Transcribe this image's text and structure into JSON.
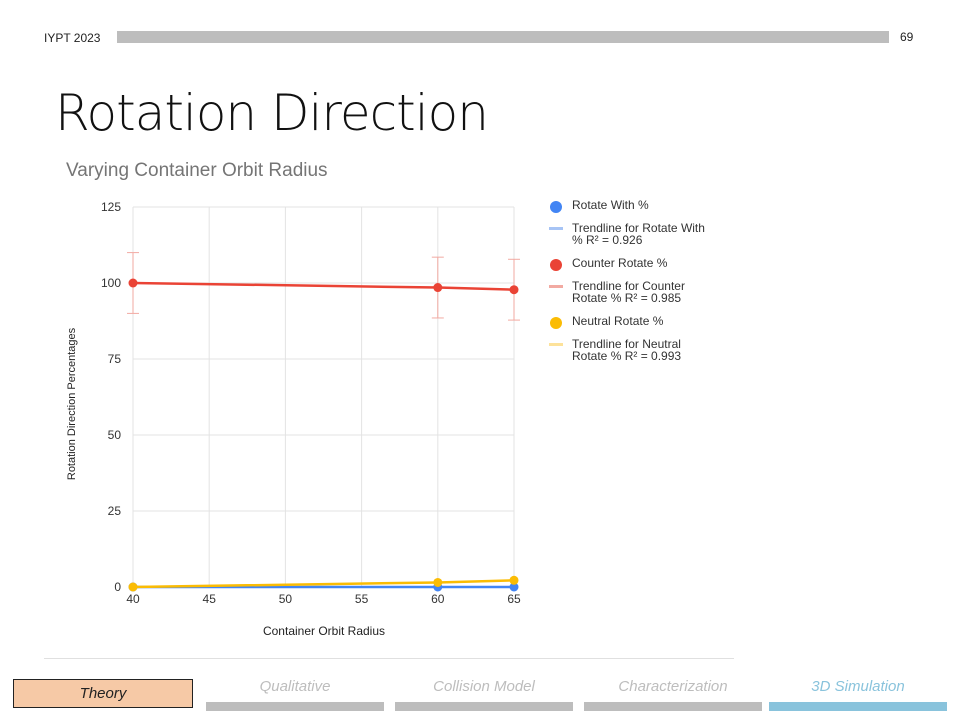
{
  "header": {
    "label": "IYPT 2023",
    "page_number": "69"
  },
  "slide_title": "Rotation Direction",
  "chart_data": {
    "type": "line",
    "title": "Varying Container Orbit Radius",
    "xlabel": "Container Orbit Radius",
    "ylabel": "Rotation Direction Percentages",
    "x_ticks": [
      "40",
      "45",
      "50",
      "55",
      "60",
      "65"
    ],
    "y_ticks": [
      "0",
      "25",
      "50",
      "75",
      "100",
      "125"
    ],
    "xlim": [
      40,
      65
    ],
    "ylim": [
      0,
      125
    ],
    "grid": true,
    "legend_position": "right",
    "x": [
      40,
      60,
      65
    ],
    "series": [
      {
        "name": "Rotate With %",
        "color": "#4285f4",
        "values": [
          0,
          0,
          0
        ]
      },
      {
        "name": "Counter Rotate %",
        "color": "#ea4335",
        "values": [
          100,
          98.5,
          97.8
        ],
        "error": [
          10,
          10,
          10
        ]
      },
      {
        "name": "Neutral Rotate %",
        "color": "#fbbc04",
        "values": [
          0,
          1.5,
          2.2
        ]
      }
    ],
    "trendlines": [
      {
        "name_line1": "Trendline for Rotate With",
        "name_line2": "% R² = 0.926",
        "color": "#a7c4f5"
      },
      {
        "name_line1": "Trendline for Counter",
        "name_line2": "Rotate % R² = 0.985",
        "color": "#f2aaa2"
      },
      {
        "name_line1": "Trendline for Neutral",
        "name_line2": "Rotate % R² = 0.993",
        "color": "#fde29a"
      }
    ]
  },
  "footer_nav": [
    {
      "label": "Theory",
      "active": true
    },
    {
      "label": "Qualitative",
      "active": false,
      "color": "#bdbdbd"
    },
    {
      "label": "Collision Model",
      "active": false,
      "color": "#bdbdbd"
    },
    {
      "label": "Characterization",
      "active": false,
      "color": "#bdbdbd"
    },
    {
      "label": "3D Simulation",
      "active": false,
      "color": "#89c3dc"
    }
  ]
}
